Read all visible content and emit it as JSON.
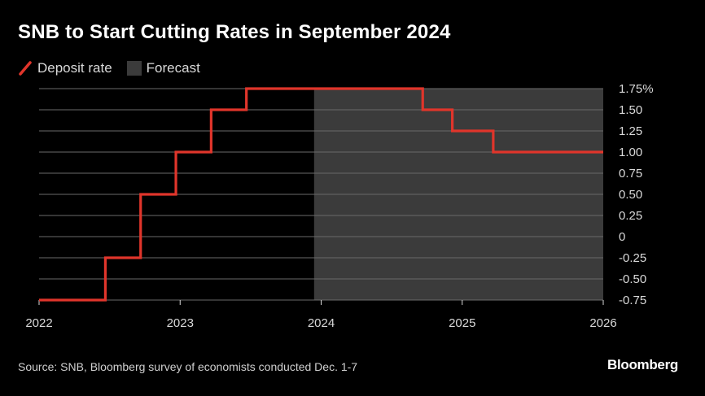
{
  "chart_data": {
    "type": "line",
    "title": "SNB to Start Cutting Rates in September 2024",
    "legend": [
      {
        "name": "Deposit rate",
        "kind": "line",
        "color": "#e0352b"
      },
      {
        "name": "Forecast",
        "kind": "area",
        "color": "#3b3b3b"
      }
    ],
    "series": [
      {
        "name": "Deposit rate",
        "step": true,
        "x": [
          2022.0,
          2022.47,
          2022.72,
          2022.97,
          2023.22,
          2023.47,
          2024.72,
          2024.93,
          2025.22,
          2026.0
        ],
        "y": [
          -0.75,
          -0.25,
          0.5,
          1.0,
          1.5,
          1.75,
          1.5,
          1.25,
          1.0,
          1.0
        ]
      }
    ],
    "forecast_range": [
      2023.95,
      2026.0
    ],
    "xlim": [
      2022.0,
      2026.0
    ],
    "ylim": [
      -0.75,
      1.75
    ],
    "x_ticks": [
      2022,
      2023,
      2024,
      2025,
      2026
    ],
    "x_tick_labels": [
      "2022",
      "2023",
      "2024",
      "2025",
      "2026"
    ],
    "y_ticks": [
      1.75,
      1.5,
      1.25,
      1.0,
      0.75,
      0.5,
      0.25,
      0,
      -0.25,
      -0.5,
      -0.75
    ],
    "y_tick_labels": [
      "1.75%",
      "1.50",
      "1.25",
      "1.00",
      "0.75",
      "0.50",
      "0.25",
      "0",
      "-0.25",
      "-0.50",
      "-0.75"
    ],
    "grid": true,
    "source": "Source: SNB, Bloomberg survey of economists conducted Dec. 1-7",
    "brand": "Bloomberg"
  },
  "colors": {
    "background": "#000000",
    "line": "#e0352b",
    "forecast": "#3b3b3b",
    "grid": "#6a6a6a",
    "text": "#d9d9d9"
  }
}
